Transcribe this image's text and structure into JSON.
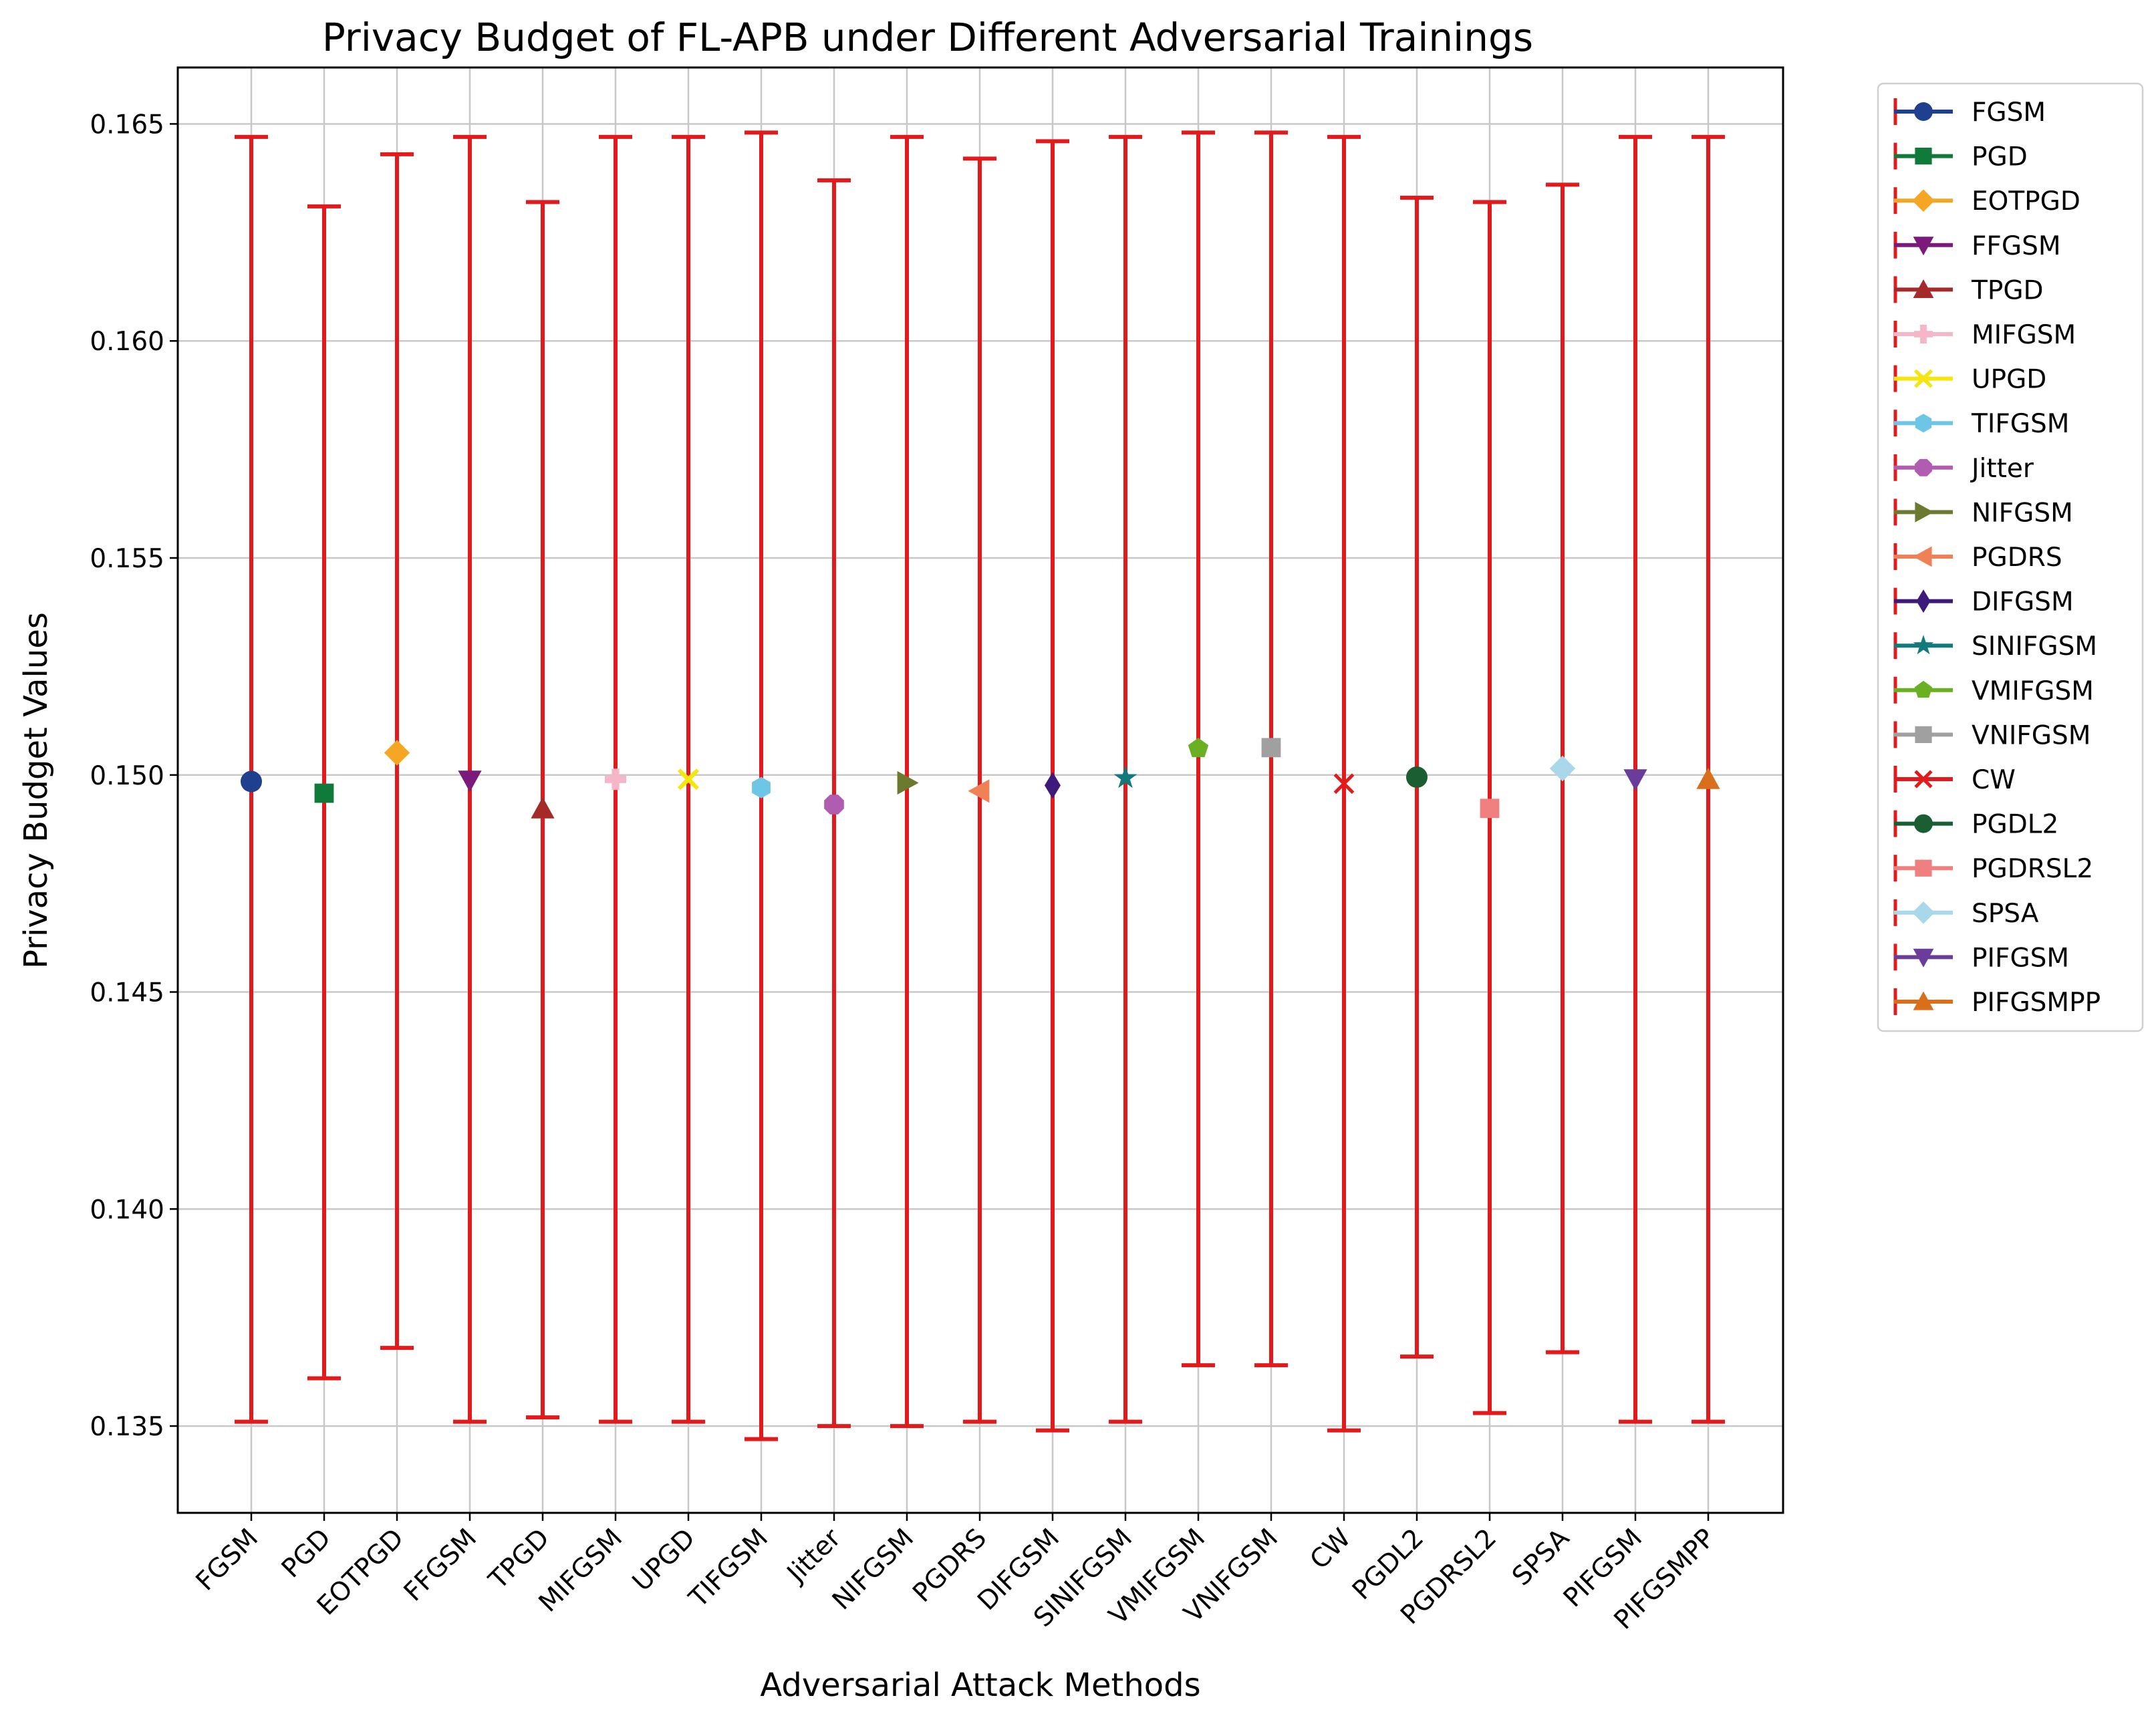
{
  "chart_data": {
    "type": "errorbar",
    "title": "Privacy Budget of FL-APB under Different Adversarial Trainings",
    "xlabel": "Adversarial Attack Methods",
    "ylabel": "Privacy Budget Values",
    "ylim": [
      0.133,
      0.1663
    ],
    "yticks": [
      0.135,
      0.14,
      0.145,
      0.15,
      0.155,
      0.16,
      0.165
    ],
    "ytick_labels": [
      "0.135",
      "0.140",
      "0.145",
      "0.150",
      "0.155",
      "0.160",
      "0.165"
    ],
    "grid": true,
    "legend_position": "outside-right",
    "errorbar_color": "#e31a1c",
    "series": [
      {
        "name": "FGSM",
        "value": 0.14985,
        "lower": 0.1351,
        "upper": 0.1647,
        "color": "#1f3f8f",
        "marker": "circle"
      },
      {
        "name": "PGD",
        "value": 0.14958,
        "lower": 0.1361,
        "upper": 0.1631,
        "color": "#0f7a3a",
        "marker": "square"
      },
      {
        "name": "EOTPGD",
        "value": 0.15051,
        "lower": 0.1368,
        "upper": 0.1643,
        "color": "#f5a623",
        "marker": "diamond"
      },
      {
        "name": "FFGSM",
        "value": 0.14988,
        "lower": 0.1351,
        "upper": 0.1647,
        "color": "#7b1a7b",
        "marker": "triangle-down"
      },
      {
        "name": "TPGD",
        "value": 0.14922,
        "lower": 0.1352,
        "upper": 0.1632,
        "color": "#a52a2a",
        "marker": "triangle-up"
      },
      {
        "name": "MIFGSM",
        "value": 0.1499,
        "lower": 0.1351,
        "upper": 0.1647,
        "color": "#f7b6c8",
        "marker": "plus"
      },
      {
        "name": "UPGD",
        "value": 0.1499,
        "lower": 0.1351,
        "upper": 0.1647,
        "color": "#f5e60f",
        "marker": "x-filled"
      },
      {
        "name": "TIFGSM",
        "value": 0.14971,
        "lower": 0.1347,
        "upper": 0.1648,
        "color": "#6ec6e6",
        "marker": "hexagon"
      },
      {
        "name": "Jitter",
        "value": 0.14932,
        "lower": 0.135,
        "upper": 0.1637,
        "color": "#b05cb0",
        "marker": "octagon"
      },
      {
        "name": "NIFGSM",
        "value": 0.14982,
        "lower": 0.135,
        "upper": 0.1647,
        "color": "#6b7a2e",
        "marker": "triangle-right"
      },
      {
        "name": "PGDRS",
        "value": 0.14963,
        "lower": 0.1351,
        "upper": 0.1642,
        "color": "#f08056",
        "marker": "triangle-left"
      },
      {
        "name": "DIFGSM",
        "value": 0.14976,
        "lower": 0.1349,
        "upper": 0.1646,
        "color": "#3d1a7a",
        "marker": "thin-diamond"
      },
      {
        "name": "SINIFGSM",
        "value": 0.14993,
        "lower": 0.1351,
        "upper": 0.1647,
        "color": "#127a7a",
        "marker": "star"
      },
      {
        "name": "VMIFGSM",
        "value": 0.15061,
        "lower": 0.1364,
        "upper": 0.1648,
        "color": "#6ab023",
        "marker": "pentagon"
      },
      {
        "name": "VNIFGSM",
        "value": 0.15063,
        "lower": 0.1364,
        "upper": 0.1648,
        "color": "#a0a0a0",
        "marker": "square"
      },
      {
        "name": "CW",
        "value": 0.1498,
        "lower": 0.1349,
        "upper": 0.1647,
        "color": "#e31a1c",
        "marker": "x"
      },
      {
        "name": "PGDL2",
        "value": 0.14995,
        "lower": 0.1366,
        "upper": 0.1633,
        "color": "#1a5e32",
        "marker": "circle"
      },
      {
        "name": "PGDRSL2",
        "value": 0.14923,
        "lower": 0.1353,
        "upper": 0.1632,
        "color": "#f07f7f",
        "marker": "square"
      },
      {
        "name": "SPSA",
        "value": 0.15015,
        "lower": 0.1367,
        "upper": 0.1636,
        "color": "#a8d8ea",
        "marker": "diamond"
      },
      {
        "name": "PIFGSM",
        "value": 0.14991,
        "lower": 0.1351,
        "upper": 0.1647,
        "color": "#6a3d9a",
        "marker": "triangle-down"
      },
      {
        "name": "PIFGSMPP",
        "value": 0.1499,
        "lower": 0.1351,
        "upper": 0.1647,
        "color": "#d96f1a",
        "marker": "triangle-up"
      }
    ]
  }
}
